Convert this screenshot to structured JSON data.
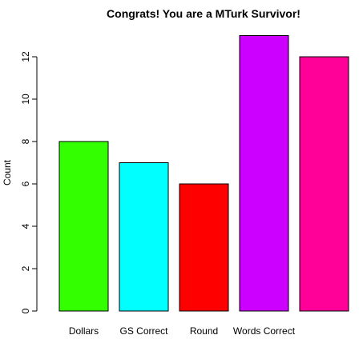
{
  "chart_data": {
    "type": "bar",
    "title": "Congrats! You are a MTurk Survivor!",
    "xlabel": "",
    "ylabel": "Count",
    "categories": [
      "Dollars",
      "GS Correct",
      "Round",
      "Words Correct",
      ""
    ],
    "values": [
      8,
      7,
      6,
      13,
      12
    ],
    "colors": [
      "#33ff00",
      "#00ffff",
      "#ff0000",
      "#cc00ff",
      "#ff0099"
    ],
    "yticks": [
      0,
      2,
      4,
      6,
      8,
      10,
      12
    ],
    "ylim": [
      0,
      13
    ],
    "grid": false,
    "legend": "none"
  }
}
